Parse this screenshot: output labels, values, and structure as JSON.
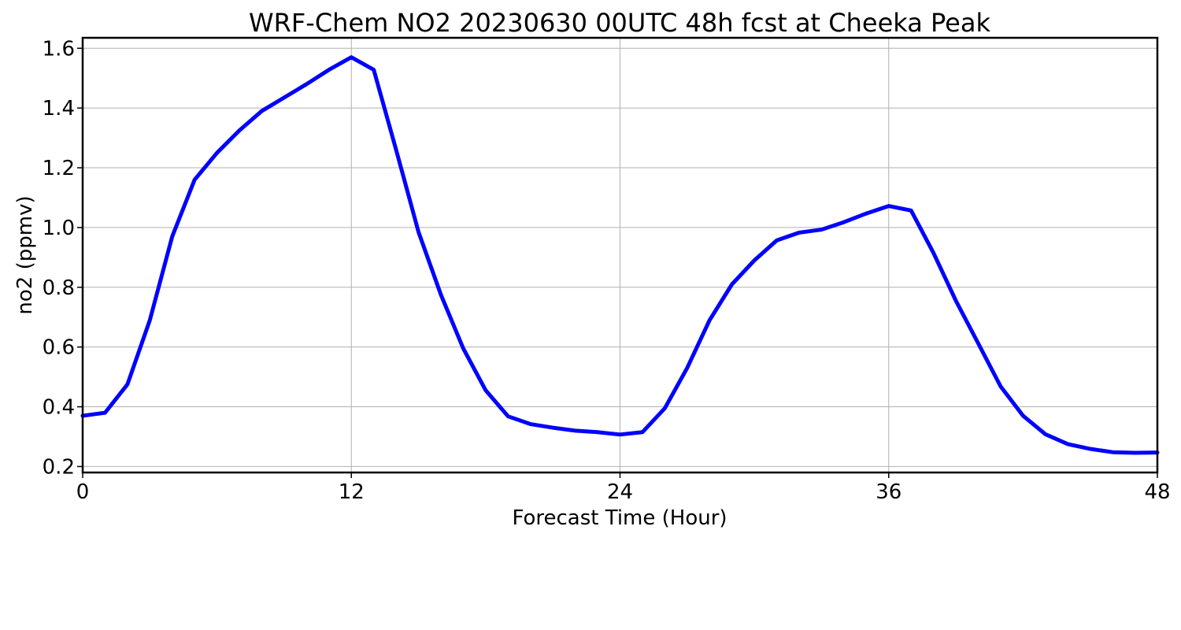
{
  "chart_data": {
    "type": "line",
    "title": "WRF-Chem NO2  20230630 00UTC 48h fcst at Cheeka Peak",
    "xlabel": "Forecast Time (Hour)",
    "ylabel": "no2  (ppmv)",
    "xlim": [
      0,
      48
    ],
    "ylim": [
      0.18,
      1.635
    ],
    "xticks": [
      0,
      12,
      24,
      36,
      48
    ],
    "yticks": [
      0.2,
      0.4,
      0.6,
      0.8,
      1.0,
      1.2,
      1.4,
      1.6
    ],
    "yticks_labels": [
      "0.2",
      "0.4",
      "0.6",
      "0.8",
      "1.0",
      "1.2",
      "1.4",
      "1.6"
    ],
    "grid": true,
    "line_color": "#0000ff",
    "x": [
      0,
      1,
      2,
      3,
      4,
      5,
      6,
      7,
      8,
      9,
      10,
      11,
      12,
      13,
      14,
      15,
      16,
      17,
      18,
      19,
      20,
      21,
      22,
      23,
      24,
      25,
      26,
      27,
      28,
      29,
      30,
      31,
      32,
      33,
      34,
      35,
      36,
      37,
      38,
      39,
      40,
      41,
      42,
      43,
      44,
      45,
      46,
      47,
      48
    ],
    "y": [
      0.37,
      0.38,
      0.475,
      0.69,
      0.97,
      1.16,
      1.25,
      1.325,
      1.39,
      1.435,
      1.48,
      1.528,
      1.57,
      1.528,
      1.26,
      0.985,
      0.775,
      0.595,
      0.455,
      0.368,
      0.342,
      0.33,
      0.32,
      0.315,
      0.307,
      0.315,
      0.395,
      0.53,
      0.69,
      0.81,
      0.89,
      0.957,
      0.983,
      0.993,
      1.018,
      1.047,
      1.072,
      1.057,
      0.915,
      0.755,
      0.612,
      0.468,
      0.37,
      0.308,
      0.275,
      0.259,
      0.248,
      0.246,
      0.247
    ]
  }
}
